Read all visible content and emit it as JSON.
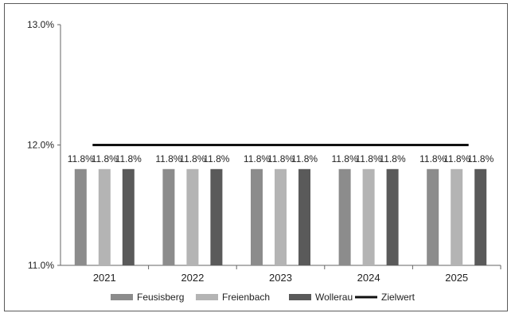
{
  "chart_data": {
    "type": "bar",
    "categories": [
      "2021",
      "2022",
      "2023",
      "2024",
      "2025"
    ],
    "series": [
      {
        "name": "Feusisberg",
        "values": [
          11.8,
          11.8,
          11.8,
          11.8,
          11.8
        ],
        "labels": [
          "11.8%",
          "11.8%",
          "11.8%",
          "11.8%",
          "11.8%"
        ],
        "color": "#8c8c8c"
      },
      {
        "name": "Freienbach",
        "values": [
          11.8,
          11.8,
          11.8,
          11.8,
          11.8
        ],
        "labels": [
          "11.8%",
          "11.8%",
          "11.8%",
          "11.8%",
          "11.8%"
        ],
        "color": "#b4b4b4"
      },
      {
        "name": "Wollerau",
        "values": [
          11.8,
          11.8,
          11.8,
          11.8,
          11.8
        ],
        "labels": [
          "11.8%",
          "11.8%",
          "11.8%",
          "11.8%",
          "11.8%"
        ],
        "color": "#5a5a5a"
      }
    ],
    "target_line": {
      "name": "Zielwert",
      "value": 12.0,
      "color": "#111111"
    },
    "ylim": [
      11.0,
      13.0
    ],
    "yticks": [
      11.0,
      12.0,
      13.0
    ],
    "ytick_labels": [
      "11.0%",
      "12.0%",
      "13.0%"
    ],
    "grid": false,
    "legend_position": "bottom"
  }
}
